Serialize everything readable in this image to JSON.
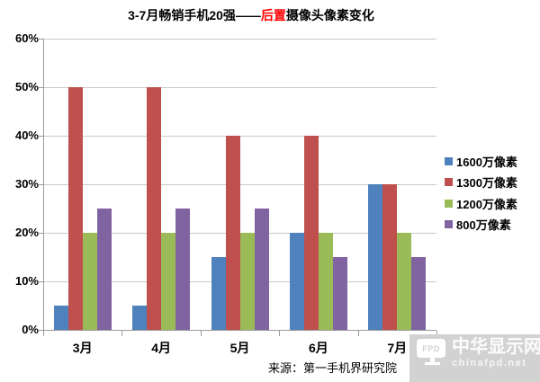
{
  "title": {
    "full_text": "3-7月畅销手机20强——后置摄像头像素变化",
    "segments": [
      {
        "text": "3-7月畅销手机20强——",
        "color": "#000000"
      },
      {
        "text": "后置",
        "color": "#FF0000"
      },
      {
        "text": "摄像头像素变化",
        "color": "#000000"
      }
    ]
  },
  "chart_data": {
    "type": "bar",
    "title": "3-7月畅销手机20强——后置摄像头像素变化",
    "categories": [
      "3月",
      "4月",
      "5月",
      "6月",
      "7月"
    ],
    "series": [
      {
        "name": "1600万像素",
        "color": "#4F81BD",
        "values": [
          5,
          5,
          15,
          20,
          30
        ]
      },
      {
        "name": "1300万像素",
        "color": "#C0504D",
        "values": [
          50,
          50,
          40,
          40,
          30
        ]
      },
      {
        "name": "1200万像素",
        "color": "#9BBB59",
        "values": [
          20,
          20,
          20,
          20,
          20
        ]
      },
      {
        "name": "800万像素",
        "color": "#8064A2",
        "values": [
          25,
          25,
          25,
          15,
          15
        ]
      }
    ],
    "unit": "%",
    "ylim": [
      0,
      60
    ],
    "y_tick_step": 10,
    "y_tick_labels": [
      "0%",
      "10%",
      "20%",
      "30%",
      "40%",
      "50%",
      "60%"
    ],
    "grid": "horizontal",
    "legend_position": "right"
  },
  "source": {
    "label": "来源：第一手机界研究院"
  },
  "watermark": {
    "logo_text": "FPD",
    "site_name": "中华显示网",
    "site_url": "chinafpd.net"
  },
  "colors": {
    "background": "#FFFFFF",
    "gridline": "#C9C9C9",
    "axis": "#9B9B9B",
    "title_highlight": "#FF0000",
    "watermark_bg": "#D2D2D2"
  }
}
